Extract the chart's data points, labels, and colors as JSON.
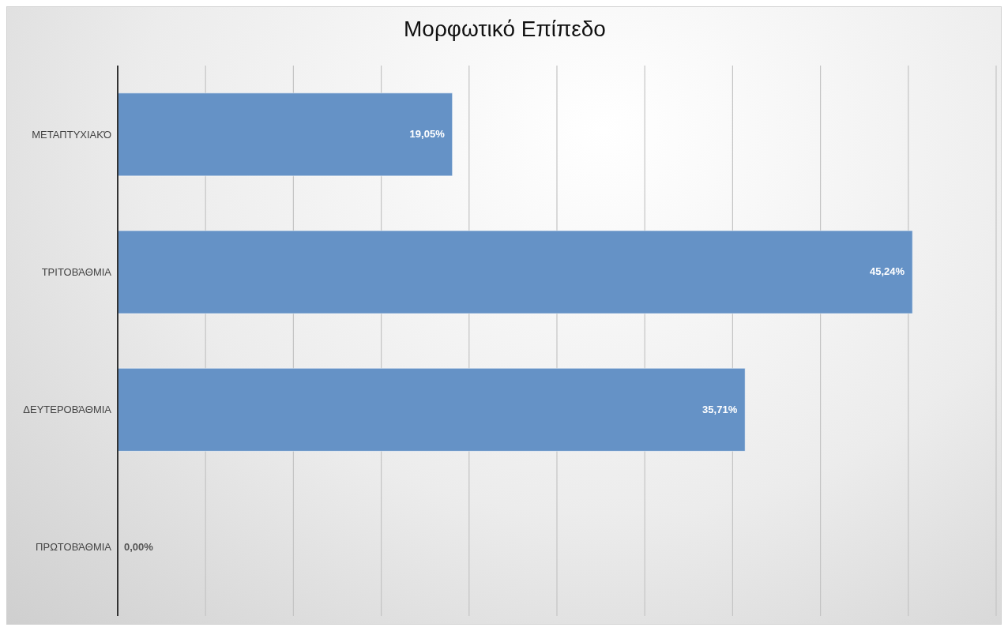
{
  "chart_data": {
    "type": "bar",
    "orientation": "horizontal",
    "title": "Μορφωτικό Επίπεδο",
    "categories": [
      "ΜΕΤΑΠΤΥΧΙΑΚΌ",
      "ΤΡΙΤΟΒΆΘΜΙΑ",
      "ΔΕΥΤΕΡΟΒΆΘΜΙΑ",
      "ΠΡΩΤΟΒΆΘΜΙΑ"
    ],
    "values": [
      19.05,
      45.24,
      35.71,
      0
    ],
    "value_labels": [
      "19,05%",
      "45,24%",
      "35,71%",
      "0,00%"
    ],
    "color": "#6592c6",
    "xlim": [
      0,
      50
    ],
    "xticks": [
      {
        "value": 0,
        "label": null
      },
      {
        "value": 5,
        "label": null
      },
      {
        "value": 10,
        "label": null
      },
      {
        "value": 15,
        "label": null
      },
      {
        "value": 20,
        "label": null
      },
      {
        "value": 25,
        "label": null
      },
      {
        "value": 30,
        "label": null
      },
      {
        "value": 35,
        "label": null
      },
      {
        "value": 40,
        "label": null
      },
      {
        "value": 45,
        "label": null
      },
      {
        "value": 50,
        "label": null
      }
    ],
    "grid": "x",
    "tick_labels": "y"
  }
}
